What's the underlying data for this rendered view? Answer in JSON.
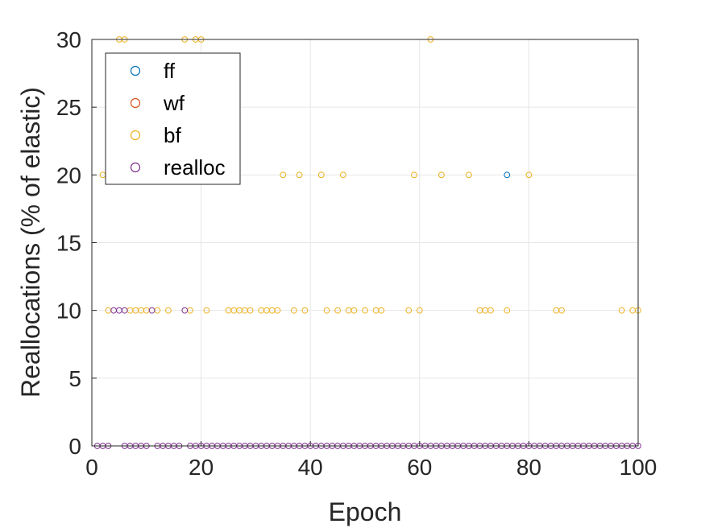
{
  "chart_data": {
    "type": "scatter",
    "title": "",
    "xlabel": "Epoch",
    "ylabel": "Reallocations (% of elastic)",
    "xlim": [
      0,
      100
    ],
    "ylim": [
      0,
      30
    ],
    "xticks": [
      "0",
      "20",
      "40",
      "60",
      "80",
      "100"
    ],
    "yticks": [
      "0",
      "5",
      "10",
      "15",
      "20",
      "25",
      "30"
    ],
    "grid": true,
    "legend_position": "top-left",
    "series": [
      {
        "name": "ff",
        "color": "#0072BD",
        "points": [
          [
            76,
            20
          ]
        ]
      },
      {
        "name": "wf",
        "color": "#D95319",
        "points": []
      },
      {
        "name": "bf",
        "color": "#EDB120",
        "points": [
          [
            5,
            30
          ],
          [
            6,
            30
          ],
          [
            17,
            30
          ],
          [
            19,
            30
          ],
          [
            20,
            30
          ],
          [
            62,
            30
          ],
          [
            2,
            20
          ],
          [
            35,
            20
          ],
          [
            38,
            20
          ],
          [
            42,
            20
          ],
          [
            46,
            20
          ],
          [
            59,
            20
          ],
          [
            64,
            20
          ],
          [
            69,
            20
          ],
          [
            80,
            20
          ],
          [
            3,
            10
          ],
          [
            7,
            10
          ],
          [
            8,
            10
          ],
          [
            9,
            10
          ],
          [
            10,
            10
          ],
          [
            12,
            10
          ],
          [
            14,
            10
          ],
          [
            18,
            10
          ],
          [
            21,
            10
          ],
          [
            25,
            10
          ],
          [
            26,
            10
          ],
          [
            27,
            10
          ],
          [
            28,
            10
          ],
          [
            29,
            10
          ],
          [
            31,
            10
          ],
          [
            32,
            10
          ],
          [
            33,
            10
          ],
          [
            34,
            10
          ],
          [
            37,
            10
          ],
          [
            39,
            10
          ],
          [
            43,
            10
          ],
          [
            45,
            10
          ],
          [
            47,
            10
          ],
          [
            48,
            10
          ],
          [
            50,
            10
          ],
          [
            52,
            10
          ],
          [
            53,
            10
          ],
          [
            58,
            10
          ],
          [
            60,
            10
          ],
          [
            71,
            10
          ],
          [
            72,
            10
          ],
          [
            73,
            10
          ],
          [
            76,
            10
          ],
          [
            85,
            10
          ],
          [
            86,
            10
          ],
          [
            97,
            10
          ],
          [
            99,
            10
          ],
          [
            100,
            10
          ]
        ]
      },
      {
        "name": "realloc",
        "color": "#7E2F8E",
        "points": [
          [
            4,
            10
          ],
          [
            5,
            10
          ],
          [
            6,
            10
          ],
          [
            11,
            10
          ],
          [
            17,
            10
          ],
          [
            1,
            0
          ],
          [
            2,
            0
          ],
          [
            3,
            0
          ],
          [
            6,
            0
          ],
          [
            7,
            0
          ],
          [
            8,
            0
          ],
          [
            9,
            0
          ],
          [
            10,
            0
          ],
          [
            12,
            0
          ],
          [
            13,
            0
          ],
          [
            14,
            0
          ],
          [
            15,
            0
          ],
          [
            16,
            0
          ],
          [
            18,
            0
          ],
          [
            19,
            0
          ],
          [
            20,
            0
          ],
          [
            21,
            0
          ],
          [
            22,
            0
          ],
          [
            23,
            0
          ],
          [
            24,
            0
          ],
          [
            25,
            0
          ],
          [
            26,
            0
          ],
          [
            27,
            0
          ],
          [
            28,
            0
          ],
          [
            29,
            0
          ],
          [
            30,
            0
          ],
          [
            31,
            0
          ],
          [
            32,
            0
          ],
          [
            33,
            0
          ],
          [
            34,
            0
          ],
          [
            35,
            0
          ],
          [
            36,
            0
          ],
          [
            37,
            0
          ],
          [
            38,
            0
          ],
          [
            39,
            0
          ],
          [
            40,
            0
          ],
          [
            41,
            0
          ],
          [
            42,
            0
          ],
          [
            43,
            0
          ],
          [
            44,
            0
          ],
          [
            45,
            0
          ],
          [
            46,
            0
          ],
          [
            47,
            0
          ],
          [
            48,
            0
          ],
          [
            49,
            0
          ],
          [
            50,
            0
          ],
          [
            51,
            0
          ],
          [
            52,
            0
          ],
          [
            53,
            0
          ],
          [
            54,
            0
          ],
          [
            55,
            0
          ],
          [
            56,
            0
          ],
          [
            57,
            0
          ],
          [
            58,
            0
          ],
          [
            59,
            0
          ],
          [
            60,
            0
          ],
          [
            61,
            0
          ],
          [
            62,
            0
          ],
          [
            63,
            0
          ],
          [
            64,
            0
          ],
          [
            65,
            0
          ],
          [
            66,
            0
          ],
          [
            67,
            0
          ],
          [
            68,
            0
          ],
          [
            69,
            0
          ],
          [
            70,
            0
          ],
          [
            71,
            0
          ],
          [
            72,
            0
          ],
          [
            73,
            0
          ],
          [
            74,
            0
          ],
          [
            75,
            0
          ],
          [
            76,
            0
          ],
          [
            77,
            0
          ],
          [
            78,
            0
          ],
          [
            79,
            0
          ],
          [
            80,
            0
          ],
          [
            81,
            0
          ],
          [
            82,
            0
          ],
          [
            83,
            0
          ],
          [
            84,
            0
          ],
          [
            85,
            0
          ],
          [
            86,
            0
          ],
          [
            87,
            0
          ],
          [
            88,
            0
          ],
          [
            89,
            0
          ],
          [
            90,
            0
          ],
          [
            91,
            0
          ],
          [
            92,
            0
          ],
          [
            93,
            0
          ],
          [
            94,
            0
          ],
          [
            95,
            0
          ],
          [
            96,
            0
          ],
          [
            97,
            0
          ],
          [
            98,
            0
          ],
          [
            99,
            0
          ],
          [
            100,
            0
          ]
        ]
      }
    ]
  }
}
